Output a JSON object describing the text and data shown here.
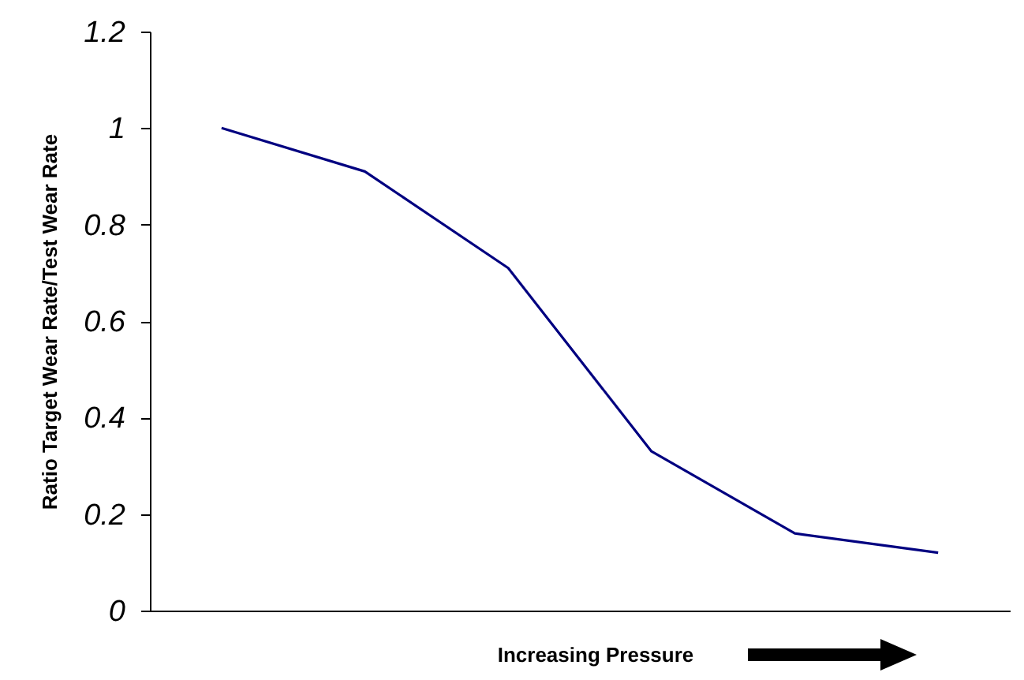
{
  "chart_data": {
    "type": "line",
    "xlabel": "Increasing Pressure",
    "ylabel": "Ratio Target Wear Rate/Test Wear Rate",
    "categories": [
      null,
      null,
      null,
      null,
      null,
      null
    ],
    "series": [
      {
        "color": "#000080",
        "values": [
          1.0,
          0.91,
          0.71,
          0.33,
          0.16,
          0.12
        ]
      }
    ],
    "ylim": [
      0,
      1.2
    ],
    "yticks": [
      0,
      0.2,
      0.4,
      0.6,
      0.8,
      1,
      1.2
    ],
    "tick_labels": "y",
    "grid": false,
    "legend": false,
    "marker": "none",
    "line_style": "solid"
  }
}
